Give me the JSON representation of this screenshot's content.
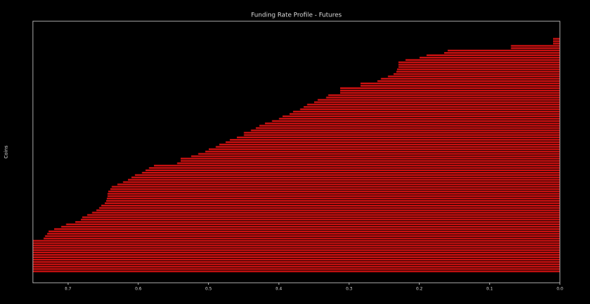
{
  "chart_data": {
    "type": "barh",
    "title": "Funding Rate Profile - Futures",
    "y_label": "Coins",
    "color": "#cc1111",
    "edge_color": "#000000",
    "categories": [
      null,
      null,
      null,
      null,
      null,
      null,
      null,
      null,
      null,
      null,
      null,
      null,
      null,
      null,
      null,
      null,
      null,
      null,
      null,
      null,
      null,
      null,
      null,
      null,
      null,
      null,
      null,
      null,
      null,
      null,
      null,
      null,
      null,
      null,
      null,
      null,
      null,
      null,
      null,
      null,
      null,
      null,
      null,
      null,
      null,
      null,
      null,
      null,
      null,
      null,
      null,
      null,
      null,
      null,
      null,
      null,
      null,
      null,
      null,
      null,
      null,
      null,
      null,
      null,
      null,
      null,
      null,
      null,
      null,
      null,
      null,
      null,
      null,
      null,
      null,
      null,
      null,
      null,
      null,
      null,
      null,
      null,
      null,
      null,
      null,
      null,
      null,
      null,
      null,
      null,
      null,
      null,
      null,
      null,
      null,
      null,
      null,
      null,
      null,
      null
    ],
    "values": [
      0.01,
      0.01,
      0.01,
      0.07,
      0.07,
      0.16,
      0.165,
      0.19,
      0.2,
      0.22,
      0.23,
      0.23,
      0.23,
      0.232,
      0.233,
      0.237,
      0.245,
      0.255,
      0.26,
      0.284,
      0.284,
      0.313,
      0.313,
      0.313,
      0.33,
      0.333,
      0.345,
      0.35,
      0.36,
      0.365,
      0.37,
      0.38,
      0.385,
      0.395,
      0.4,
      0.41,
      0.42,
      0.428,
      0.433,
      0.44,
      0.45,
      0.45,
      0.46,
      0.47,
      0.476,
      0.485,
      0.49,
      0.5,
      0.505,
      0.515,
      0.525,
      0.54,
      0.54,
      0.545,
      0.578,
      0.585,
      0.59,
      0.595,
      0.605,
      0.61,
      0.615,
      0.622,
      0.63,
      0.638,
      0.64,
      0.643,
      0.644,
      0.644,
      0.645,
      0.646,
      0.648,
      0.653,
      0.656,
      0.66,
      0.666,
      0.673,
      0.68,
      0.682,
      0.69,
      0.703,
      0.71,
      0.72,
      0.728,
      0.73,
      0.733,
      0.735,
      0.75,
      0.75,
      0.75,
      0.75,
      0.75,
      0.75,
      0.75,
      0.75,
      0.75,
      0.75,
      0.75,
      0.75,
      0.75,
      0.75
    ],
    "xlim": [
      0.75,
      0
    ],
    "xticks": [
      0.7,
      0.6,
      0.5,
      0.4,
      0.3,
      0.2,
      0.1,
      {
        "value": 0,
        "label": "0.0"
      }
    ]
  }
}
